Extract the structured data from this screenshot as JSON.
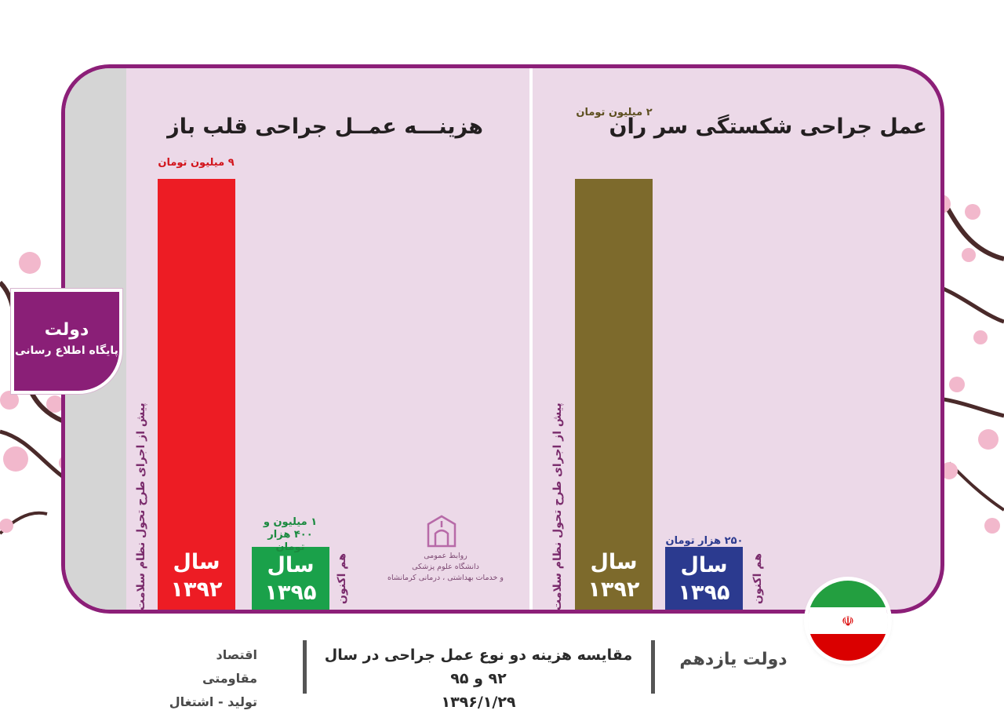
{
  "chart_data": [
    {
      "type": "bar",
      "title": "هزینـــه عمــل جراحی قلب باز",
      "axis_label": "پیش از اجرای طرح تحول نظام سلامت",
      "now_label": "هم اکنون",
      "categories": [
        "سال ۱۳۹۲",
        "سال ۱۳۹۵"
      ],
      "values": [
        9000000,
        1400000
      ],
      "value_labels": [
        "۹ میلیون تومان",
        "۱ میلیون و ۴۰۰ هزار تومان"
      ],
      "colors": [
        "#ed1c24",
        "#1aa14a"
      ],
      "label_colors": [
        "#d2141b",
        "#1aa14a"
      ],
      "unit": "تومان",
      "ylim": [
        0,
        9000000
      ]
    },
    {
      "type": "bar",
      "title": "عمل جراحی شکستگی سر ران",
      "axis_label": "پیش از اجرای طرح تحول نظام سلامت",
      "now_label": "هم اکنون",
      "categories": [
        "سال ۱۳۹۲",
        "سال ۱۳۹۵"
      ],
      "values": [
        2000000,
        250000
      ],
      "value_labels": [
        "۲ میلیون تومان",
        "۲۵۰ هزار تومان"
      ],
      "colors": [
        "#7d6a2c",
        "#2b3a8f"
      ],
      "label_colors": [
        "#5c4e1f",
        "#2b3a8f"
      ],
      "unit": "تومان",
      "ylim": [
        0,
        2000000
      ]
    }
  ],
  "year_word": "سال",
  "years": [
    "۱۳۹۲",
    "۱۳۹۵"
  ],
  "logo": {
    "line1": "دولت",
    "line2": "پایگاه اطلاع رسانی"
  },
  "university": {
    "line1": "روابط عمومی",
    "line2": "دانشگاه علوم پزشکی",
    "line3": "و خدمات بهداشتی ، درمانی کرمانشاه"
  },
  "footer": {
    "left_line1": "اقتصاد مقاومتی",
    "left_line2": "تولید - اشتغال",
    "center_line1": "مقایسه هزینه دو نوع عمل جراحی در سال ۹۲ و ۹۵",
    "center_line2": "۱۳۹۶/۱/۲۹",
    "right": "دولت یازدهم"
  },
  "colors": {
    "frame": "#8c1f78",
    "panel": "#ecd9e8",
    "blossom": "#f2b8cc",
    "branch": "#4a2a2a"
  }
}
